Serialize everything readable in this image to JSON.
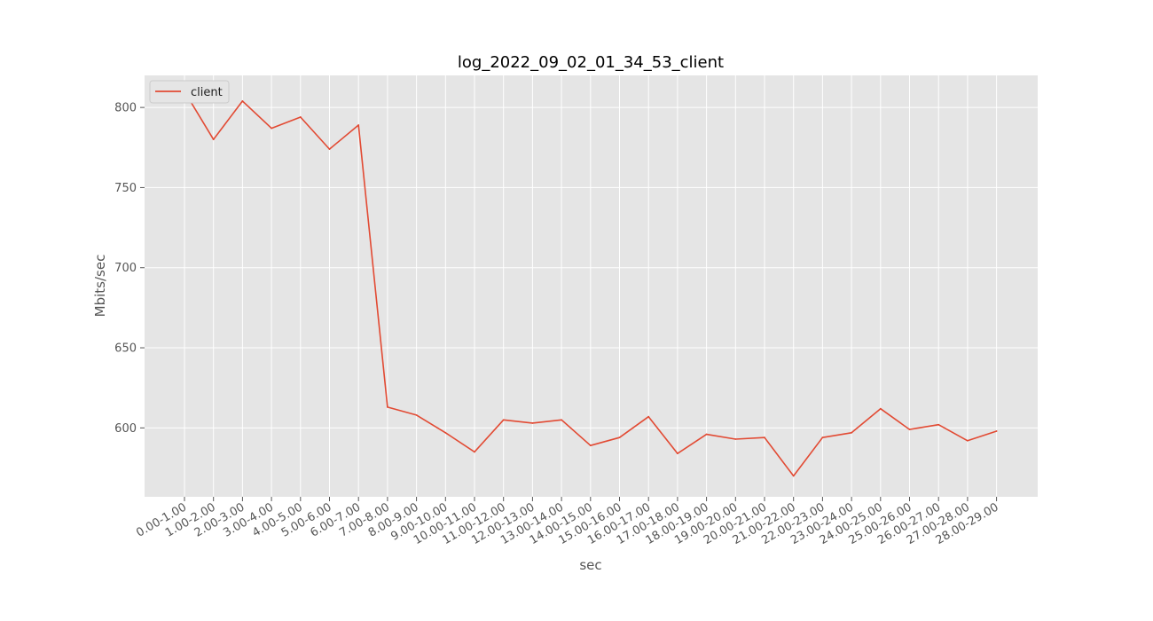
{
  "colors": {
    "plot_background": "#e5e5e5",
    "grid": "#ffffff",
    "series": "#e24a33",
    "text": "#555555",
    "title": "#000000"
  },
  "chart_data": {
    "type": "line",
    "title": "log_2022_09_02_01_34_53_client",
    "xlabel": "sec",
    "ylabel": "Mbits/sec",
    "ylim": [
      557,
      820
    ],
    "yticks": [
      600,
      650,
      700,
      750,
      800
    ],
    "grid": true,
    "legend_position": "upper-left",
    "categories": [
      "0.00-1.00",
      "1.00-2.00",
      "2.00-3.00",
      "3.00-4.00",
      "4.00-5.00",
      "5.00-6.00",
      "6.00-7.00",
      "7.00-8.00",
      "8.00-9.00",
      "9.00-10.00",
      "10.00-11.00",
      "11.00-12.00",
      "12.00-13.00",
      "13.00-14.00",
      "14.00-15.00",
      "15.00-16.00",
      "16.00-17.00",
      "17.00-18.00",
      "18.00-19.00",
      "19.00-20.00",
      "20.00-21.00",
      "21.00-22.00",
      "22.00-23.00",
      "23.00-24.00",
      "24.00-25.00",
      "25.00-26.00",
      "26.00-27.00",
      "27.00-28.00",
      "28.00-29.00"
    ],
    "series": [
      {
        "name": "client",
        "values": [
          810,
          780,
          804,
          787,
          794,
          774,
          789,
          613,
          608,
          597,
          585,
          605,
          603,
          605,
          589,
          594,
          607,
          584,
          596,
          593,
          594,
          570,
          594,
          597,
          612,
          599,
          602,
          592,
          598
        ]
      }
    ]
  }
}
